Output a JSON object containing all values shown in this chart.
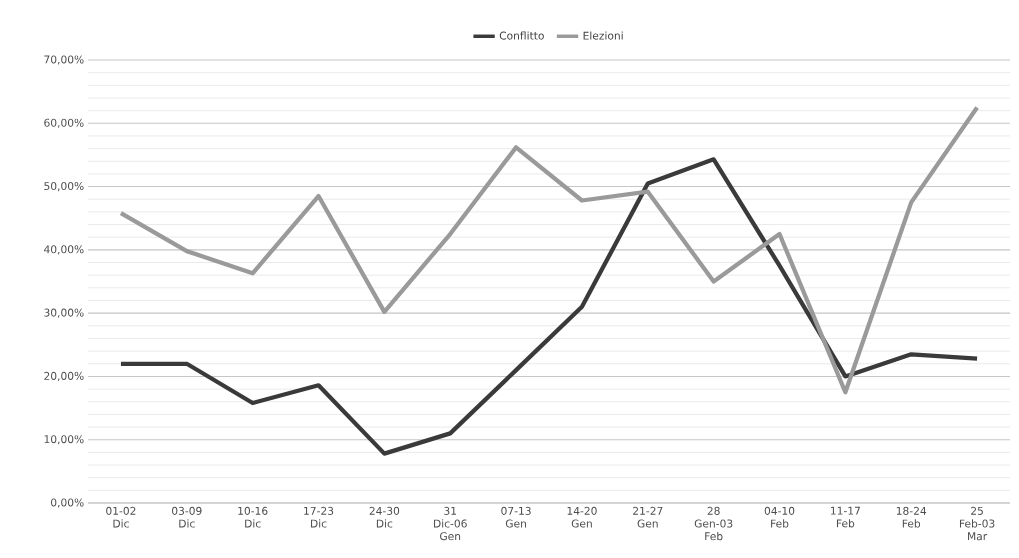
{
  "chart_data": {
    "type": "line",
    "categories": [
      "01-02 Dic",
      "03-09 Dic",
      "10-16 Dic",
      "17-23 Dic",
      "24-30 Dic",
      "31 Dic-06 Gen",
      "07-13 Gen",
      "14-20 Gen",
      "21-27 Gen",
      "28 Gen-03 Feb",
      "04-10 Feb",
      "11-17 Feb",
      "18-24 Feb",
      "25 Feb-03 Mar"
    ],
    "series": [
      {
        "name": "Conflitto",
        "color": "#3a3a3a",
        "values": [
          22,
          22,
          15.8,
          18.6,
          7.8,
          11,
          21,
          31,
          50.5,
          54.3,
          37.5,
          20,
          23.5,
          22.8
        ]
      },
      {
        "name": "Elezioni",
        "color": "#9a9a9a",
        "values": [
          45.8,
          39.8,
          36.3,
          48.5,
          30.2,
          42.5,
          56.2,
          47.8,
          49.2,
          35,
          42.5,
          17.5,
          47.5,
          62.5
        ]
      }
    ],
    "ylim": [
      0,
      70
    ],
    "yticks": [
      {
        "value": 0,
        "label": "0,00%"
      },
      {
        "value": 10,
        "label": "10,00%"
      },
      {
        "value": 20,
        "label": "20,00%"
      },
      {
        "value": 30,
        "label": "30,00%"
      },
      {
        "value": 40,
        "label": "40,00%"
      },
      {
        "value": 50,
        "label": "50,00%"
      },
      {
        "value": 60,
        "label": "60,00%"
      },
      {
        "value": 70,
        "label": "70,00%"
      }
    ],
    "grid": "y",
    "legend": "top",
    "marker": "none",
    "line_style": "solid"
  }
}
